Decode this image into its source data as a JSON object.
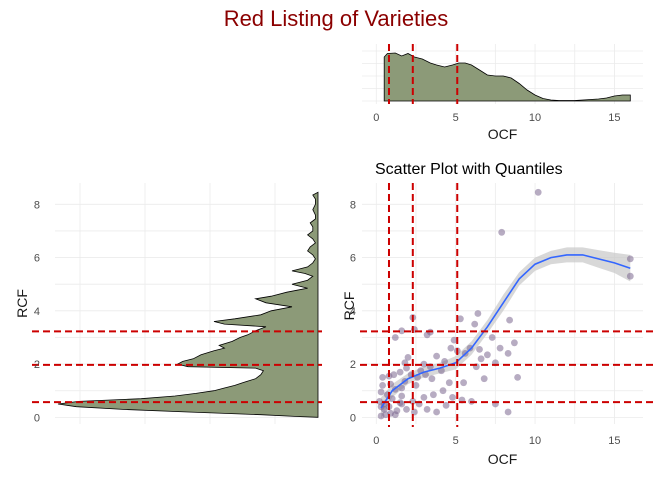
{
  "title": "Red Listing of Varieties",
  "colors": {
    "title": "#8b0000",
    "density_fill": "#8c9a78",
    "quantile_line": "#cc0000",
    "point": "#7b6790",
    "smooth_line": "#3366ff",
    "smooth_band": "#c8c8c8",
    "grid": "#ebebeb"
  },
  "chart_data": [
    {
      "panel": "top-density",
      "type": "area",
      "title": "",
      "xlabel": "OCF",
      "ylabel": "",
      "xlim": [
        -0.9,
        16.8
      ],
      "xticks": [
        0,
        5,
        10,
        15
      ],
      "y_tick_labels_shown": false,
      "grid": true,
      "quantile_lines_x": [
        0.8,
        2.3,
        5.1
      ],
      "series": [
        {
          "values": [
            [
              0.5,
              0
            ],
            [
              0.5,
              0.88
            ],
            [
              0.7,
              0.95
            ],
            [
              1.2,
              0.96
            ],
            [
              1.6,
              0.9
            ],
            [
              2.0,
              0.95
            ],
            [
              2.4,
              0.88
            ],
            [
              2.9,
              0.84
            ],
            [
              3.4,
              0.76
            ],
            [
              3.8,
              0.72
            ],
            [
              4.3,
              0.68
            ],
            [
              4.8,
              0.72
            ],
            [
              5.2,
              0.76
            ],
            [
              5.6,
              0.76
            ],
            [
              6.0,
              0.72
            ],
            [
              6.5,
              0.62
            ],
            [
              7.0,
              0.52
            ],
            [
              7.5,
              0.5
            ],
            [
              8.0,
              0.5
            ],
            [
              8.5,
              0.46
            ],
            [
              9.0,
              0.35
            ],
            [
              9.5,
              0.22
            ],
            [
              10.0,
              0.12
            ],
            [
              10.5,
              0.05
            ],
            [
              11.0,
              0.02
            ],
            [
              11.5,
              0.01
            ],
            [
              12.0,
              0.01
            ],
            [
              12.5,
              0.01
            ],
            [
              13.0,
              0.02
            ],
            [
              13.5,
              0.03
            ],
            [
              14.0,
              0.04
            ],
            [
              14.5,
              0.06
            ],
            [
              15.0,
              0.1
            ],
            [
              15.5,
              0.12
            ],
            [
              16.0,
              0.12
            ],
            [
              16.0,
              0
            ]
          ]
        }
      ]
    },
    {
      "panel": "left-density",
      "type": "area",
      "title": "",
      "xlabel": "",
      "ylabel": "RCF",
      "ylim": [
        -0.25,
        8.8
      ],
      "yticks": [
        0,
        2,
        4,
        6,
        8
      ],
      "x_tick_labels_shown": false,
      "grid": true,
      "quantile_lines_y": [
        0.57,
        1.97,
        3.23
      ],
      "series": [
        {
          "values": [
            [
              0,
              0
            ],
            [
              0.03,
              0.08
            ],
            [
              0.1,
              0.22
            ],
            [
              0.2,
              0.5
            ],
            [
              0.3,
              0.75
            ],
            [
              0.4,
              0.93
            ],
            [
              0.5,
              1.0
            ],
            [
              0.6,
              0.92
            ],
            [
              0.7,
              0.68
            ],
            [
              0.8,
              0.55
            ],
            [
              0.9,
              0.47
            ],
            [
              1.0,
              0.4
            ],
            [
              1.1,
              0.36
            ],
            [
              1.2,
              0.32
            ],
            [
              1.3,
              0.29
            ],
            [
              1.45,
              0.24
            ],
            [
              1.6,
              0.22
            ],
            [
              1.75,
              0.21
            ],
            [
              1.85,
              0.24
            ],
            [
              1.9,
              0.5
            ],
            [
              2.0,
              0.54
            ],
            [
              2.1,
              0.52
            ],
            [
              2.2,
              0.48
            ],
            [
              2.35,
              0.45
            ],
            [
              2.5,
              0.4
            ],
            [
              2.6,
              0.36
            ],
            [
              2.7,
              0.38
            ],
            [
              2.85,
              0.33
            ],
            [
              3.0,
              0.3
            ],
            [
              3.1,
              0.27
            ],
            [
              3.25,
              0.24
            ],
            [
              3.4,
              0.2
            ],
            [
              3.5,
              0.36
            ],
            [
              3.6,
              0.4
            ],
            [
              3.7,
              0.32
            ],
            [
              3.85,
              0.22
            ],
            [
              4.0,
              0.18
            ],
            [
              4.15,
              0.1
            ],
            [
              4.3,
              0.2
            ],
            [
              4.45,
              0.24
            ],
            [
              4.55,
              0.18
            ],
            [
              4.7,
              0.12
            ],
            [
              4.85,
              0.04
            ],
            [
              5.0,
              0.1
            ],
            [
              5.15,
              0.04
            ],
            [
              5.3,
              0.02
            ],
            [
              5.4,
              0.05
            ],
            [
              5.5,
              0.1
            ],
            [
              5.65,
              0.04
            ],
            [
              5.8,
              0.02
            ],
            [
              5.95,
              0.01
            ],
            [
              6.1,
              0.02
            ],
            [
              6.25,
              0.04
            ],
            [
              6.4,
              0.03
            ],
            [
              6.55,
              0.01
            ],
            [
              6.7,
              0.02
            ],
            [
              6.85,
              0.04
            ],
            [
              7.0,
              0.02
            ],
            [
              7.15,
              0.02
            ],
            [
              7.3,
              0.03
            ],
            [
              7.45,
              0.01
            ],
            [
              7.6,
              0.01
            ],
            [
              7.8,
              0.02
            ],
            [
              8.0,
              0.01
            ],
            [
              8.2,
              0.01
            ],
            [
              8.35,
              0.02
            ],
            [
              8.45,
              0
            ]
          ]
        }
      ]
    },
    {
      "panel": "scatter",
      "type": "scatter",
      "title": "Scatter Plot with Quantiles",
      "xlabel": "OCF",
      "ylabel": "RCF",
      "xlim": [
        -0.9,
        16.8
      ],
      "ylim": [
        -0.25,
        8.8
      ],
      "xticks": [
        0,
        5,
        10,
        15
      ],
      "yticks": [
        0,
        2,
        4,
        6,
        8
      ],
      "grid": true,
      "quantile_lines_x": [
        0.8,
        2.3,
        5.1
      ],
      "quantile_lines_y": [
        0.57,
        1.97,
        3.23
      ],
      "points": [
        [
          10.2,
          8.45
        ],
        [
          7.9,
          6.95
        ],
        [
          16,
          5.95
        ],
        [
          16,
          5.3
        ],
        [
          6.4,
          3.9
        ],
        [
          6.2,
          3.5
        ],
        [
          8.4,
          3.65
        ],
        [
          5.3,
          3.7
        ],
        [
          2.3,
          3.75
        ],
        [
          2.4,
          3.3
        ],
        [
          1.6,
          3.25
        ],
        [
          3.4,
          3.2
        ],
        [
          3.2,
          3.1
        ],
        [
          1.2,
          3.0
        ],
        [
          7.3,
          3.0
        ],
        [
          8.7,
          2.8
        ],
        [
          5.1,
          2.5
        ],
        [
          4.7,
          2.6
        ],
        [
          6.5,
          2.55
        ],
        [
          5.6,
          2.4
        ],
        [
          7.0,
          2.35
        ],
        [
          3.8,
          2.3
        ],
        [
          2.0,
          2.25
        ],
        [
          3.0,
          2.0
        ],
        [
          1.8,
          2.05
        ],
        [
          1.9,
          1.85
        ],
        [
          4.1,
          1.75
        ],
        [
          3.4,
          1.9
        ],
        [
          2.8,
          1.75
        ],
        [
          7.5,
          2.05
        ],
        [
          6.3,
          1.9
        ],
        [
          8.9,
          1.5
        ],
        [
          6.8,
          1.45
        ],
        [
          5.5,
          1.3
        ],
        [
          4.6,
          1.3
        ],
        [
          3.5,
          1.45
        ],
        [
          2.6,
          1.5
        ],
        [
          2.2,
          1.6
        ],
        [
          1.5,
          1.7
        ],
        [
          1.1,
          1.6
        ],
        [
          1.8,
          1.35
        ],
        [
          1.6,
          1.1
        ],
        [
          1.2,
          1.05
        ],
        [
          0.9,
          1.25
        ],
        [
          0.8,
          1.55
        ],
        [
          0.4,
          1.5
        ],
        [
          0.4,
          1.2
        ],
        [
          0.3,
          0.95
        ],
        [
          0.7,
          0.85
        ],
        [
          1.0,
          0.7
        ],
        [
          1.5,
          0.55
        ],
        [
          2.3,
          0.6
        ],
        [
          2.7,
          0.5
        ],
        [
          3.0,
          0.75
        ],
        [
          3.6,
          0.85
        ],
        [
          4.2,
          1.0
        ],
        [
          4.8,
          0.75
        ],
        [
          5.4,
          0.65
        ],
        [
          6.0,
          0.6
        ],
        [
          7.5,
          0.5
        ],
        [
          8.3,
          0.2
        ],
        [
          0.3,
          0.4
        ],
        [
          0.5,
          0.3
        ],
        [
          0.6,
          0.1
        ],
        [
          0.9,
          0.15
        ],
        [
          1.3,
          0.25
        ],
        [
          1.9,
          0.3
        ],
        [
          2.4,
          0.2
        ],
        [
          3.2,
          0.3
        ],
        [
          3.8,
          0.2
        ],
        [
          4.4,
          0.45
        ],
        [
          0.3,
          0.05
        ],
        [
          0.5,
          0.5
        ],
        [
          1.6,
          0.8
        ],
        [
          2.5,
          1.2
        ],
        [
          3.1,
          1.6
        ],
        [
          4.3,
          2.1
        ],
        [
          5.9,
          2.6
        ],
        [
          6.6,
          2.2
        ],
        [
          7.8,
          2.6
        ],
        [
          8.3,
          2.4
        ],
        [
          4.9,
          2.9
        ],
        [
          0.2,
          0.6
        ],
        [
          0.8,
          0.4
        ],
        [
          1.2,
          0.1
        ],
        [
          1.6,
          0.5
        ]
      ],
      "smooth": {
        "line": [
          [
            0.3,
            0.35
          ],
          [
            1,
            1.0
          ],
          [
            2,
            1.45
          ],
          [
            3,
            1.7
          ],
          [
            4,
            1.85
          ],
          [
            5,
            2.05
          ],
          [
            6,
            2.6
          ],
          [
            7,
            3.4
          ],
          [
            8,
            4.3
          ],
          [
            9,
            5.2
          ],
          [
            10,
            5.75
          ],
          [
            11,
            6.0
          ],
          [
            12,
            6.1
          ],
          [
            13,
            6.1
          ],
          [
            14,
            5.95
          ],
          [
            15,
            5.8
          ],
          [
            16,
            5.6
          ]
        ],
        "band_upper": [
          [
            0.3,
            0.75
          ],
          [
            1,
            1.25
          ],
          [
            2,
            1.65
          ],
          [
            3,
            1.9
          ],
          [
            4,
            2.05
          ],
          [
            5,
            2.3
          ],
          [
            6,
            2.85
          ],
          [
            7,
            3.65
          ],
          [
            8,
            4.6
          ],
          [
            9,
            5.45
          ],
          [
            10,
            6.0
          ],
          [
            11,
            6.25
          ],
          [
            12,
            6.38
          ],
          [
            13,
            6.38
          ],
          [
            14,
            6.28
          ],
          [
            15,
            6.18
          ],
          [
            16,
            6.1
          ]
        ],
        "band_lower": [
          [
            0.3,
            -0.05
          ],
          [
            1,
            0.75
          ],
          [
            2,
            1.25
          ],
          [
            3,
            1.5
          ],
          [
            4,
            1.65
          ],
          [
            5,
            1.8
          ],
          [
            6,
            2.35
          ],
          [
            7,
            3.15
          ],
          [
            8,
            4.0
          ],
          [
            9,
            4.95
          ],
          [
            10,
            5.5
          ],
          [
            11,
            5.75
          ],
          [
            12,
            5.82
          ],
          [
            13,
            5.82
          ],
          [
            14,
            5.62
          ],
          [
            15,
            5.42
          ],
          [
            16,
            5.1
          ]
        ]
      }
    }
  ]
}
